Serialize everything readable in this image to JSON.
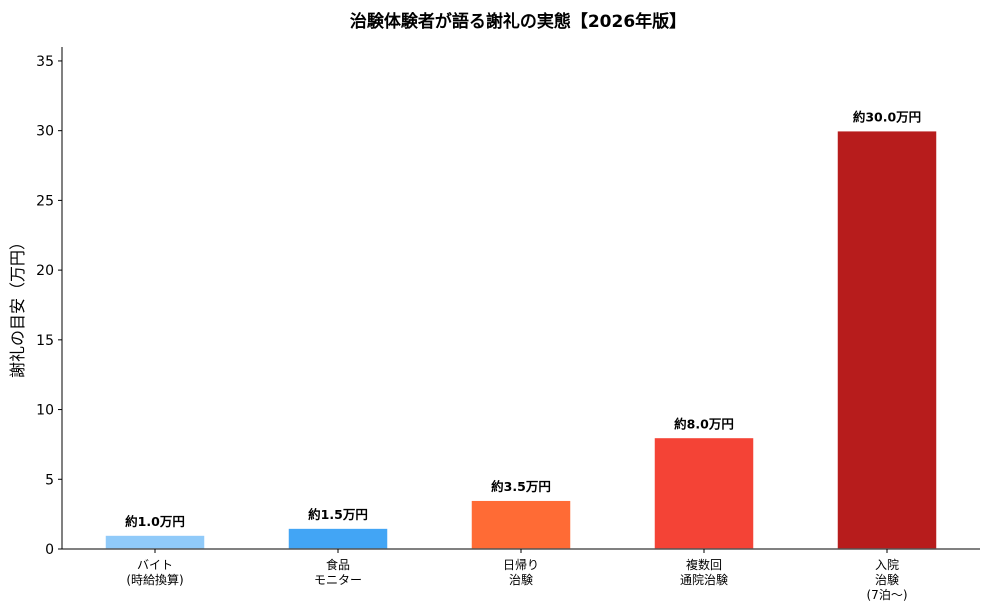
{
  "chart_data": {
    "type": "bar",
    "title": "治験体験者が語る謝礼の実態【2026年版】",
    "xlabel": "",
    "ylabel": "謝礼の目安（万円）",
    "ylim": [
      0,
      36
    ],
    "yticks": [
      0,
      5,
      10,
      15,
      20,
      25,
      30,
      35
    ],
    "grid": false,
    "legend": false,
    "categories": [
      [
        "バイト",
        "(時給換算)"
      ],
      [
        "食品",
        "モニター"
      ],
      [
        "日帰り",
        "治験"
      ],
      [
        "複数回",
        "通院治験"
      ],
      [
        "入院",
        "治験",
        "(7泊〜)"
      ]
    ],
    "values": [
      1.0,
      1.5,
      3.5,
      8.0,
      30.0
    ],
    "data_labels": [
      "約1.0万円",
      "約1.5万円",
      "約3.5万円",
      "約8.0万円",
      "約30.0万円"
    ],
    "colors": [
      "#90caf9",
      "#42a5f5",
      "#ff6b35",
      "#f44336",
      "#b71c1c"
    ]
  }
}
